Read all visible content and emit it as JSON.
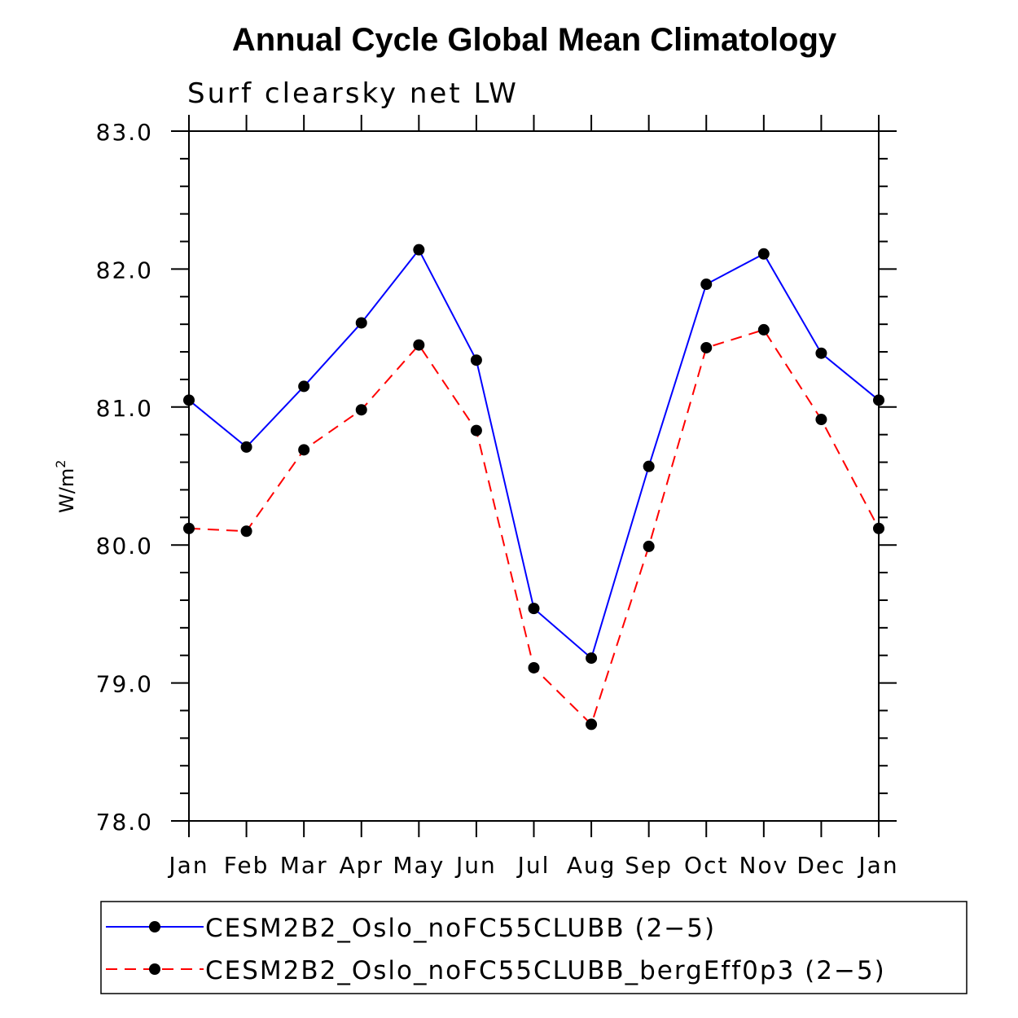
{
  "chart_data": {
    "type": "line",
    "title": "Annual Cycle Global Mean Climatology",
    "subtitle": "Surf clearsky net LW",
    "xlabel": "",
    "ylabel": "W/m",
    "ylabel_superscript": "2",
    "categories": [
      "Jan",
      "Feb",
      "Mar",
      "Apr",
      "May",
      "Jun",
      "Jul",
      "Aug",
      "Sep",
      "Oct",
      "Nov",
      "Dec",
      "Jan"
    ],
    "ylim": [
      78.0,
      83.0
    ],
    "yticks": [
      "78.0",
      "79.0",
      "80.0",
      "81.0",
      "82.0",
      "83.0"
    ],
    "series": [
      {
        "name": "CESM2B2_Oslo_noFC55CLUBB (2−5)",
        "color": "#0000ff",
        "dash": "solid",
        "values": [
          81.05,
          80.71,
          81.15,
          81.61,
          82.14,
          81.34,
          79.54,
          79.18,
          80.57,
          81.89,
          82.11,
          81.39,
          81.05
        ]
      },
      {
        "name": "CESM2B2_Oslo_noFC55CLUBB_bergEff0p3 (2−5)",
        "color": "#ff0000",
        "dash": "dashed",
        "values": [
          80.12,
          80.1,
          80.69,
          80.98,
          81.45,
          80.83,
          79.11,
          78.7,
          79.99,
          81.43,
          81.56,
          80.91,
          80.12
        ]
      }
    ],
    "legend_position": "bottom"
  }
}
